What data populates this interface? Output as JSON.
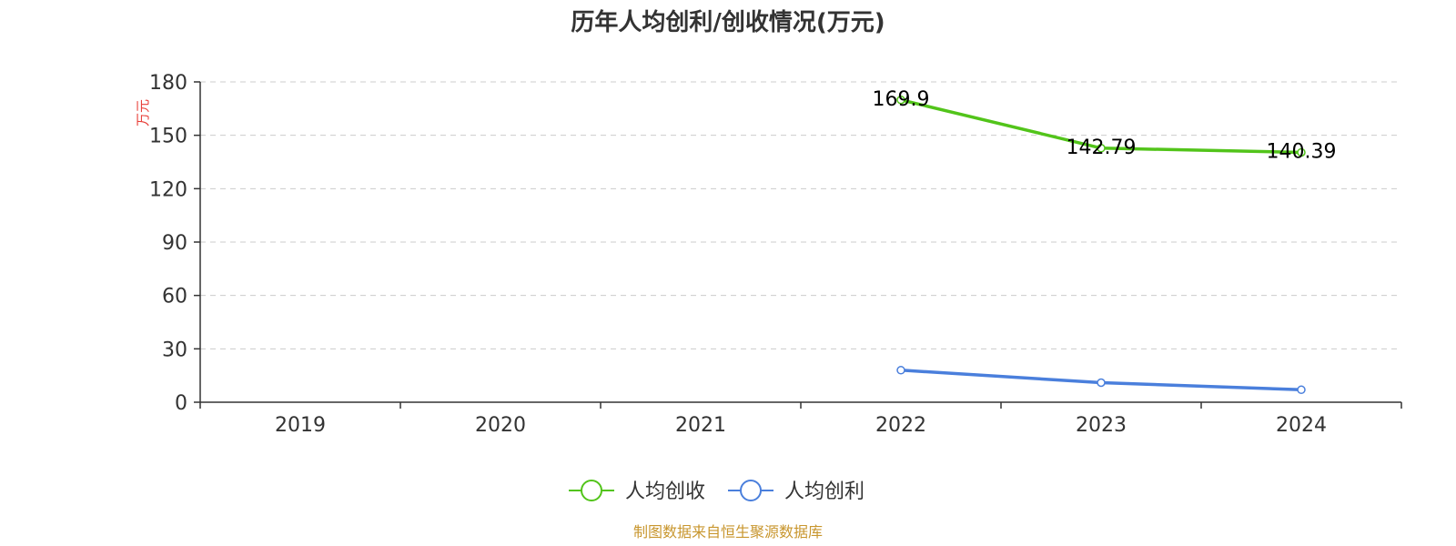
{
  "chart_data": {
    "type": "line",
    "title": "历年人均创利/创收情况(万元)",
    "ylabel": "万元",
    "categories": [
      "2019",
      "2020",
      "2021",
      "2022",
      "2023",
      "2024"
    ],
    "ylim": [
      0,
      180
    ],
    "yticks": [
      0,
      30,
      60,
      90,
      120,
      150,
      180
    ],
    "grid": true,
    "legend_position": "bottom-center",
    "series": [
      {
        "name": "人均创收",
        "color": "#52c41a",
        "values": [
          null,
          null,
          null,
          169.9,
          142.79,
          140.39
        ],
        "data_labels": [
          "",
          "",
          "",
          "169.9",
          "142.79",
          "140.39"
        ]
      },
      {
        "name": "人均创利",
        "color": "#4a7fdc",
        "values": [
          null,
          null,
          null,
          18,
          11,
          7
        ],
        "data_labels": [
          "",
          "",
          "",
          "",
          "",
          ""
        ]
      }
    ]
  },
  "source_note": "制图数据来自恒生聚源数据库",
  "colors": {
    "unit_label": "#e8403a",
    "source_note": "#c8962e",
    "axis": "#333333",
    "grid": "#cccccc"
  }
}
